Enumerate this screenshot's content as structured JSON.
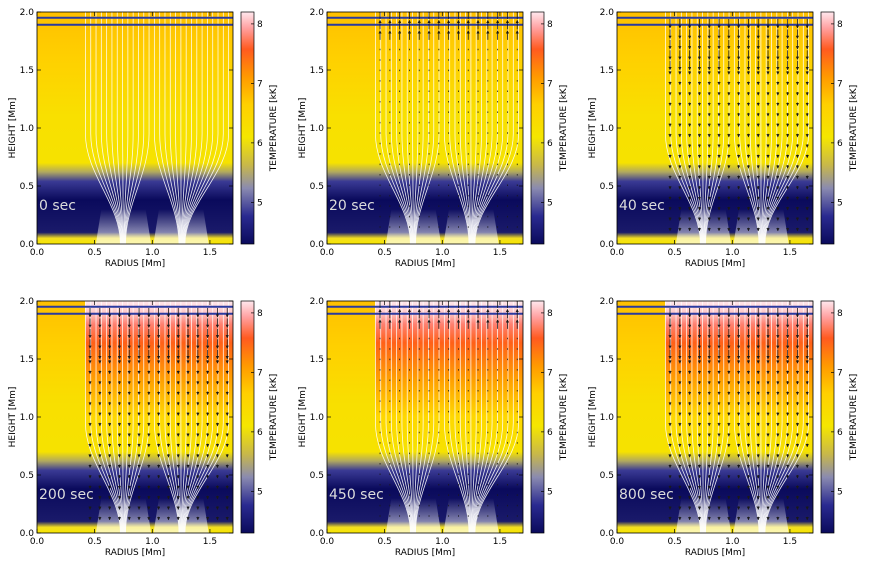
{
  "chart_data": [
    {
      "type": "heatmap",
      "time_label": "0 sec",
      "heated": false,
      "flow": "none"
    },
    {
      "type": "heatmap",
      "time_label": "20 sec",
      "heated": false,
      "flow": "up"
    },
    {
      "type": "heatmap",
      "time_label": "40 sec",
      "heated": false,
      "flow": "down"
    },
    {
      "type": "heatmap",
      "time_label": "200 sec",
      "heated": true,
      "flow": "down"
    },
    {
      "type": "heatmap",
      "time_label": "450 sec",
      "heated": true,
      "flow": "up"
    },
    {
      "type": "heatmap",
      "time_label": "800 sec",
      "heated": true,
      "flow": "down"
    }
  ],
  "axes": {
    "xlabel": "RADIUS [Mm]",
    "ylabel": "HEIGHT [Mm]",
    "x_ticks": [
      {
        "v": 0.0,
        "label": "0.0"
      },
      {
        "v": 0.5,
        "label": "0.5"
      },
      {
        "v": 1.0,
        "label": "1.0"
      },
      {
        "v": 1.5,
        "label": "1.5"
      }
    ],
    "y_ticks": [
      {
        "v": 0.0,
        "label": "0.0"
      },
      {
        "v": 0.5,
        "label": "0.5"
      },
      {
        "v": 1.0,
        "label": "1.0"
      },
      {
        "v": 1.5,
        "label": "1.5"
      },
      {
        "v": 2.0,
        "label": "2.0"
      }
    ],
    "xlim": [
      0.0,
      1.7
    ],
    "ylim": [
      0.0,
      2.0
    ]
  },
  "colorbar": {
    "label": "TEMPERATURE [kK]",
    "range": [
      4.3,
      8.2
    ],
    "ticks": [
      {
        "v": 5,
        "label": "5"
      },
      {
        "v": 6,
        "label": "6"
      },
      {
        "v": 7,
        "label": "7"
      },
      {
        "v": 8,
        "label": "8"
      }
    ],
    "colors": [
      "#0a0a5c",
      "#2a2a90",
      "#8a8ab0",
      "#c8b84a",
      "#f5e600",
      "#ffd000",
      "#ff9a00",
      "#ff5a20",
      "#ffa0a0",
      "#ffe8ee"
    ]
  },
  "field_lines": {
    "radius": [
      0.75,
      1.25
    ],
    "footpoint_radius": [
      0.42,
      1.7
    ],
    "merge_height": 0.75
  },
  "colors": {
    "line": "#ffffff",
    "boundary": "#2a3aa0",
    "arrow": "#1a1a1a",
    "label": "#dcdcdc"
  }
}
